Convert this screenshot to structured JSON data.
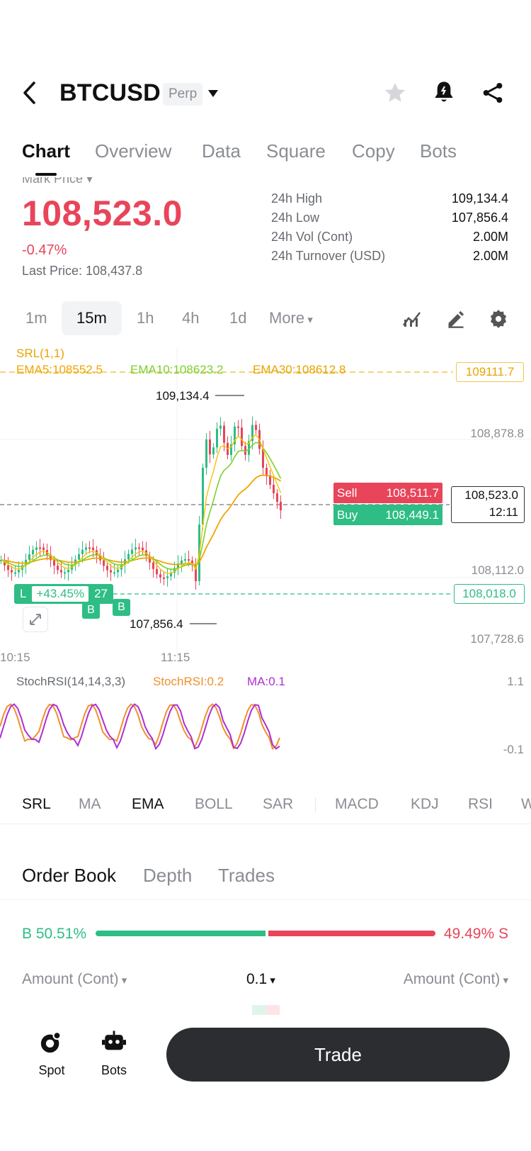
{
  "header": {
    "symbol": "BTCUSD",
    "badge": "Perp",
    "icons": [
      "back-icon",
      "chevron-down-icon",
      "star-icon",
      "bell-icon",
      "share-icon"
    ]
  },
  "tabs": [
    "Chart",
    "Overview",
    "Data",
    "Square",
    "Copy",
    "Bots"
  ],
  "price": {
    "mark_label": "Mark Price",
    "mark_price": "108,523.0",
    "change": "-0.47%",
    "last_price_label": "Last Price: 108,437.8",
    "color_down": "#e8455a"
  },
  "stats": [
    {
      "label": "24h High",
      "value": "109,134.4"
    },
    {
      "label": "24h Low",
      "value": "107,856.4"
    },
    {
      "label": "24h Vol (Cont)",
      "value": "2.00M"
    },
    {
      "label": "24h Turnover (USD)",
      "value": "2.00M"
    }
  ],
  "intervals": [
    "1m",
    "15m",
    "1h",
    "4h",
    "1d",
    "More"
  ],
  "interval_selected": "15m",
  "chart": {
    "srl": "SRL(1,1)",
    "ema5": "EMA5:108552.5",
    "ema10": "EMA10:108623.2",
    "ema30": "EMA30:108612.8",
    "axis": [
      "108,878.8",
      "108,112.0",
      "107,728.6"
    ],
    "tag_srl": "109111.7",
    "tag_high": "109,134.4",
    "tag_low": "107,856.4",
    "sell_label": "Sell",
    "sell_value": "108,511.7",
    "buy_label": "Buy",
    "buy_value": "108,449.1",
    "current_price": "108,523.0",
    "countdown": "12:11",
    "position_price": "108,018.0",
    "position_side": "L",
    "position_pnl": "+43.45%",
    "position_qty": "27",
    "marker_b": "B",
    "time_labels": [
      "10:15",
      "11:15"
    ],
    "stoch_label": "StochRSI(14,14,3,3)",
    "stoch_value": "StochRSI:0.2",
    "stoch_ma": "MA:0.1",
    "stoch_axis_top": "1.1",
    "stoch_axis_bottom": "-0.1",
    "color_up": "#2ebd85",
    "color_down": "#e8455a",
    "color_ema5": "#f0a500",
    "color_ema10": "#7bd12e",
    "color_stoch": "#f0902d",
    "color_ma": "#b02ed1"
  },
  "indicator_tabs": [
    "SRL",
    "MA",
    "EMA",
    "BOLL",
    "SAR",
    "MACD",
    "KDJ",
    "RSI",
    "W"
  ],
  "indicator_active": [
    "SRL",
    "EMA"
  ],
  "order_book": {
    "tabs": [
      "Order Book",
      "Depth",
      "Trades"
    ],
    "buy_ratio": "B 50.51%",
    "sell_ratio": "49.49% S",
    "buy_pct": 50.51,
    "amount_left": "Amount (Cont)",
    "precision": "0.1",
    "amount_right": "Amount (Cont)"
  },
  "bottom": {
    "spot": "Spot",
    "bots": "Bots",
    "trade": "Trade"
  }
}
